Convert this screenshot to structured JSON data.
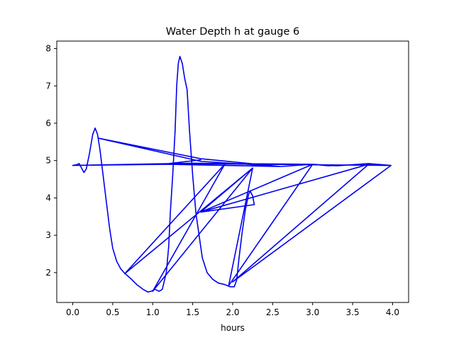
{
  "chart_data": {
    "type": "line",
    "title": "Water Depth h at gauge 6",
    "xlabel": "hours",
    "ylabel": "",
    "xlim": [
      -0.2,
      4.2
    ],
    "ylim": [
      1.2,
      8.2
    ],
    "xticks": [
      0.0,
      0.5,
      1.0,
      1.5,
      2.0,
      2.5,
      3.0,
      3.5,
      4.0
    ],
    "xtick_labels": [
      "0.0",
      "0.5",
      "1.0",
      "1.5",
      "2.0",
      "2.5",
      "3.0",
      "3.5",
      "4.0"
    ],
    "yticks": [
      2,
      3,
      4,
      5,
      6,
      7,
      8
    ],
    "ytick_labels": [
      "2",
      "3",
      "4",
      "5",
      "6",
      "7",
      "8"
    ],
    "grid": false,
    "series": [
      {
        "color": "#0000ee",
        "points": [
          [
            0.0,
            4.87
          ],
          [
            0.05,
            4.89
          ],
          [
            0.08,
            4.92
          ],
          [
            0.11,
            4.8
          ],
          [
            0.14,
            4.68
          ],
          [
            0.17,
            4.78
          ],
          [
            0.21,
            5.2
          ],
          [
            0.25,
            5.7
          ],
          [
            0.28,
            5.87
          ],
          [
            0.31,
            5.7
          ],
          [
            0.34,
            5.3
          ],
          [
            0.38,
            4.6
          ],
          [
            0.42,
            3.9
          ],
          [
            0.46,
            3.2
          ],
          [
            0.5,
            2.65
          ],
          [
            0.55,
            2.3
          ],
          [
            0.6,
            2.1
          ],
          [
            0.65,
            1.98
          ],
          [
            0.72,
            1.85
          ],
          [
            0.8,
            1.68
          ],
          [
            0.88,
            1.55
          ],
          [
            0.94,
            1.48
          ],
          [
            0.98,
            1.5
          ],
          [
            1.03,
            1.55
          ],
          [
            1.08,
            1.5
          ],
          [
            1.12,
            1.55
          ],
          [
            1.17,
            2.0
          ],
          [
            1.2,
            2.7
          ],
          [
            1.22,
            3.6
          ],
          [
            1.25,
            4.6
          ],
          [
            1.28,
            5.8
          ],
          [
            1.3,
            7.0
          ],
          [
            1.32,
            7.6
          ],
          [
            1.34,
            7.79
          ],
          [
            1.37,
            7.6
          ],
          [
            1.4,
            7.2
          ],
          [
            1.43,
            6.9
          ],
          [
            1.46,
            5.8
          ],
          [
            1.5,
            4.6
          ],
          [
            1.54,
            3.6
          ],
          [
            1.58,
            3.0
          ],
          [
            1.62,
            2.4
          ],
          [
            1.68,
            2.0
          ],
          [
            1.75,
            1.82
          ],
          [
            1.82,
            1.72
          ],
          [
            1.9,
            1.68
          ],
          [
            1.97,
            1.62
          ],
          [
            2.02,
            1.62
          ],
          [
            2.05,
            1.8
          ],
          [
            2.08,
            2.4
          ],
          [
            2.12,
            3.1
          ],
          [
            2.16,
            3.7
          ],
          [
            2.2,
            4.1
          ],
          [
            2.22,
            4.18
          ],
          [
            2.25,
            4.05
          ],
          [
            2.27,
            3.82
          ],
          [
            2.27,
            3.82
          ],
          [
            1.6,
            3.62
          ],
          [
            2.25,
            4.8
          ],
          [
            0.65,
            1.97
          ],
          [
            1.9,
            4.9
          ],
          [
            1.0,
            1.5
          ],
          [
            2.25,
            4.8
          ],
          [
            1.95,
            1.65
          ],
          [
            3.0,
            4.9
          ],
          [
            1.6,
            3.62
          ],
          [
            3.7,
            4.9
          ],
          [
            2.0,
            1.75
          ],
          [
            3.98,
            4.87
          ],
          [
            3.7,
            4.9
          ],
          [
            3.4,
            4.88
          ],
          [
            3.2,
            4.86
          ],
          [
            3.0,
            4.9
          ],
          [
            2.6,
            4.84
          ],
          [
            1.6,
            4.98
          ],
          [
            0.32,
            5.6
          ],
          [
            1.6,
            5.05
          ],
          [
            2.6,
            4.84
          ],
          [
            1.2,
            4.9
          ],
          [
            0.0,
            4.87
          ],
          [
            1.5,
            4.93
          ],
          [
            3.0,
            4.9
          ],
          [
            3.3,
            4.86
          ],
          [
            3.7,
            4.92
          ],
          [
            3.98,
            4.87
          ],
          [
            1.2,
            4.92
          ],
          [
            1.6,
            5.02
          ]
        ]
      }
    ]
  }
}
